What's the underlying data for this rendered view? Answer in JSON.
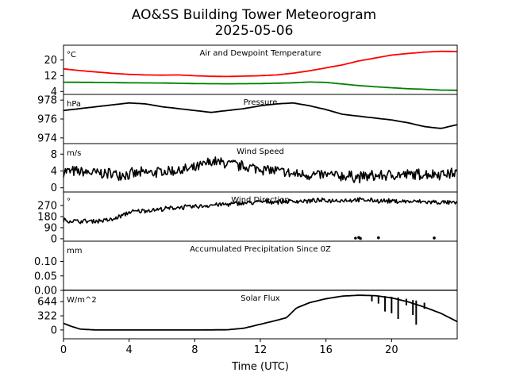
{
  "title": "AO&SS Building Tower Meteorogram",
  "subtitle": "2025-05-06",
  "xlabel": "Time (UTC)",
  "x_ticks": [
    0,
    4,
    8,
    12,
    16,
    20
  ],
  "xlim": [
    0,
    24
  ],
  "chart_data": [
    {
      "type": "line",
      "title": "Air and Dewpoint Temperature",
      "unit": "°C",
      "ylim": [
        2.5,
        27.5
      ],
      "y_ticks": [
        4,
        12,
        20
      ],
      "series": [
        {
          "color": "#ff0000",
          "points": [
            [
              0,
              15.5
            ],
            [
              1,
              14.6
            ],
            [
              2,
              13.9
            ],
            [
              3,
              13.2
            ],
            [
              4,
              12.7
            ],
            [
              5,
              12.4
            ],
            [
              6,
              12.3
            ],
            [
              7,
              12.4
            ],
            [
              8,
              12.0
            ],
            [
              9,
              11.7
            ],
            [
              10,
              11.6
            ],
            [
              11,
              11.8
            ],
            [
              12,
              12.0
            ],
            [
              13,
              12.4
            ],
            [
              14,
              13.3
            ],
            [
              15,
              14.5
            ],
            [
              16,
              16.0
            ],
            [
              17,
              17.5
            ],
            [
              18,
              19.5
            ],
            [
              19,
              21.0
            ],
            [
              20,
              22.5
            ],
            [
              21,
              23.3
            ],
            [
              22,
              24.0
            ],
            [
              23,
              24.4
            ],
            [
              24,
              24.3
            ]
          ]
        },
        {
          "color": "#008000",
          "points": [
            [
              0,
              8.7
            ],
            [
              2,
              8.6
            ],
            [
              4,
              8.4
            ],
            [
              6,
              8.3
            ],
            [
              8,
              8.0
            ],
            [
              10,
              7.9
            ],
            [
              12,
              8.0
            ],
            [
              14,
              8.4
            ],
            [
              15,
              8.8
            ],
            [
              16,
              8.6
            ],
            [
              17,
              7.8
            ],
            [
              18,
              7.0
            ],
            [
              19,
              6.4
            ],
            [
              20,
              5.9
            ],
            [
              21,
              5.4
            ],
            [
              22,
              5.1
            ],
            [
              23,
              4.7
            ],
            [
              24,
              4.6
            ]
          ]
        }
      ]
    },
    {
      "type": "line",
      "title": "Pressure",
      "unit": "hPa",
      "ylim": [
        973.4,
        978.6
      ],
      "y_ticks": [
        974,
        976,
        978
      ],
      "series": [
        {
          "color": "#000000",
          "points": [
            [
              0,
              976.9
            ],
            [
              1,
              977.1
            ],
            [
              2,
              977.3
            ],
            [
              3,
              977.5
            ],
            [
              4,
              977.7
            ],
            [
              5,
              977.6
            ],
            [
              6,
              977.3
            ],
            [
              7,
              977.1
            ],
            [
              8,
              976.9
            ],
            [
              9,
              976.7
            ],
            [
              10,
              976.9
            ],
            [
              11,
              977.1
            ],
            [
              12,
              977.4
            ],
            [
              13,
              977.6
            ],
            [
              14,
              977.7
            ],
            [
              15,
              977.4
            ],
            [
              16,
              977.0
            ],
            [
              17,
              976.5
            ],
            [
              18,
              976.3
            ],
            [
              19,
              976.1
            ],
            [
              20,
              975.9
            ],
            [
              21,
              975.6
            ],
            [
              22,
              975.2
            ],
            [
              23,
              975.0
            ],
            [
              24,
              975.4
            ]
          ]
        }
      ]
    },
    {
      "type": "line",
      "title": "Wind Speed",
      "unit": "m/s",
      "ylim": [
        -1,
        10.5
      ],
      "y_ticks": [
        0,
        4,
        8
      ],
      "series": [
        {
          "color": "#000000",
          "noisy": true,
          "noise": 1.6,
          "points": [
            [
              0,
              4.0
            ],
            [
              2,
              3.5
            ],
            [
              4,
              3.2
            ],
            [
              6,
              3.8
            ],
            [
              8,
              4.5
            ],
            [
              9,
              6.2
            ],
            [
              10,
              5.8
            ],
            [
              11,
              5.0
            ],
            [
              12,
              4.6
            ],
            [
              13,
              4.0
            ],
            [
              14,
              3.2
            ],
            [
              16,
              3.0
            ],
            [
              18,
              2.6
            ],
            [
              20,
              3.0
            ],
            [
              22,
              3.2
            ],
            [
              24,
              3.5
            ]
          ]
        }
      ]
    },
    {
      "type": "line",
      "title": "Wind Direction",
      "unit": "°",
      "ylim": [
        -20,
        380
      ],
      "y_ticks": [
        0,
        90,
        180,
        270
      ],
      "series": [
        {
          "color": "#000000",
          "noisy": true,
          "noise": 22,
          "points": [
            [
              0,
              150
            ],
            [
              1,
              140
            ],
            [
              2,
              145
            ],
            [
              3,
              155
            ],
            [
              4,
              215
            ],
            [
              5,
              230
            ],
            [
              6,
              240
            ],
            [
              7,
              255
            ],
            [
              8,
              260
            ],
            [
              9,
              275
            ],
            [
              10,
              280
            ],
            [
              11,
              290
            ],
            [
              12,
              300
            ],
            [
              14,
              305
            ],
            [
              16,
              310
            ],
            [
              18,
              315
            ],
            [
              20,
              305
            ],
            [
              22,
              300
            ],
            [
              24,
              290
            ]
          ]
        },
        {
          "color": "#000000",
          "kind": "dots",
          "points": [
            [
              17.8,
              5
            ],
            [
              18.0,
              10
            ],
            [
              18.1,
              2
            ],
            [
              19.2,
              8
            ],
            [
              22.6,
              6
            ]
          ]
        }
      ]
    },
    {
      "type": "line",
      "title": "Accumulated Precipitation Since 0Z",
      "unit": "mm",
      "ylim": [
        0,
        0.17
      ],
      "y_ticks": [
        0.0,
        0.05,
        0.1
      ],
      "y_tick_labels": [
        "0.00",
        "0.05",
        "0.10"
      ],
      "series": [
        {
          "color": "#000000",
          "points": [
            [
              0,
              0
            ],
            [
              24,
              0
            ]
          ]
        }
      ]
    },
    {
      "type": "line",
      "title": "Solar Flux",
      "unit": "W/m^2",
      "ylim": [
        -200,
        900
      ],
      "y_ticks": [
        0,
        322,
        644
      ],
      "series": [
        {
          "color": "#000000",
          "points": [
            [
              0,
              150
            ],
            [
              0.5,
              80
            ],
            [
              1,
              20
            ],
            [
              2,
              0
            ],
            [
              4,
              0
            ],
            [
              6,
              0
            ],
            [
              8,
              0
            ],
            [
              10,
              5
            ],
            [
              11,
              40
            ],
            [
              12,
              130
            ],
            [
              13,
              220
            ],
            [
              13.6,
              280
            ],
            [
              14.2,
              500
            ],
            [
              15,
              620
            ],
            [
              16,
              710
            ],
            [
              17,
              770
            ],
            [
              18,
              790
            ],
            [
              19,
              780
            ],
            [
              20,
              730
            ],
            [
              21,
              640
            ],
            [
              22,
              520
            ],
            [
              23,
              380
            ],
            [
              24,
              190
            ]
          ]
        },
        {
          "color": "#000000",
          "kind": "spikes",
          "points": [
            [
              18.8,
              790,
              650
            ],
            [
              19.2,
              780,
              600
            ],
            [
              19.6,
              770,
              420
            ],
            [
              20.0,
              755,
              380
            ],
            [
              20.4,
              740,
              250
            ],
            [
              20.9,
              710,
              560
            ],
            [
              21.3,
              680,
              340
            ],
            [
              21.5,
              670,
              120
            ],
            [
              22.0,
              620,
              480
            ]
          ]
        }
      ]
    }
  ]
}
